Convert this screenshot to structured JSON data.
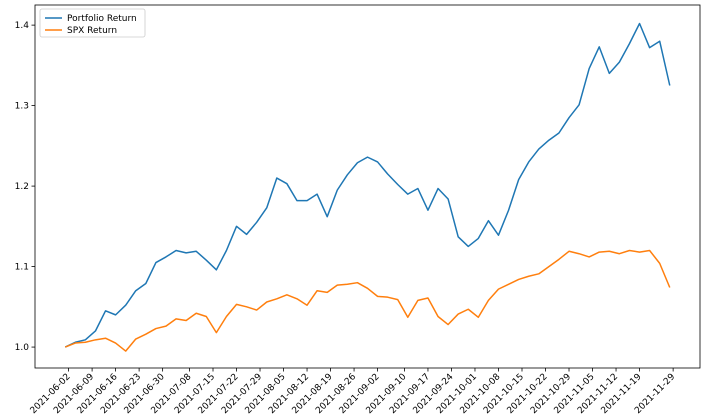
{
  "chart_data": {
    "type": "line",
    "x": [
      "2021-06-01",
      "2021-06-04",
      "2021-06-07",
      "2021-06-10",
      "2021-06-13",
      "2021-06-16",
      "2021-06-19",
      "2021-06-22",
      "2021-06-25",
      "2021-06-28",
      "2021-07-01",
      "2021-07-04",
      "2021-07-07",
      "2021-07-10",
      "2021-07-13",
      "2021-07-16",
      "2021-07-19",
      "2021-07-22",
      "2021-07-25",
      "2021-07-28",
      "2021-07-31",
      "2021-08-03",
      "2021-08-06",
      "2021-08-09",
      "2021-08-12",
      "2021-08-15",
      "2021-08-18",
      "2021-08-21",
      "2021-08-24",
      "2021-08-27",
      "2021-08-30",
      "2021-09-02",
      "2021-09-05",
      "2021-09-08",
      "2021-09-11",
      "2021-09-14",
      "2021-09-17",
      "2021-09-20",
      "2021-09-23",
      "2021-09-26",
      "2021-09-29",
      "2021-10-02",
      "2021-10-05",
      "2021-10-08",
      "2021-10-11",
      "2021-10-14",
      "2021-10-17",
      "2021-10-20",
      "2021-10-23",
      "2021-10-26",
      "2021-10-29",
      "2021-11-01",
      "2021-11-04",
      "2021-11-07",
      "2021-11-10",
      "2021-11-13",
      "2021-11-16",
      "2021-11-19",
      "2021-11-22",
      "2021-11-25",
      "2021-11-28"
    ],
    "series": [
      {
        "name": "Portfolio Return",
        "color": "#1f77b4",
        "values": [
          1.0,
          1.006,
          1.009,
          1.02,
          1.045,
          1.04,
          1.052,
          1.07,
          1.079,
          1.105,
          1.112,
          1.12,
          1.117,
          1.119,
          1.108,
          1.096,
          1.12,
          1.15,
          1.14,
          1.155,
          1.173,
          1.21,
          1.203,
          1.182,
          1.182,
          1.19,
          1.162,
          1.195,
          1.214,
          1.229,
          1.236,
          1.23,
          1.215,
          1.202,
          1.19,
          1.197,
          1.17,
          1.197,
          1.184,
          1.137,
          1.125,
          1.135,
          1.157,
          1.139,
          1.17,
          1.208,
          1.23,
          1.246,
          1.257,
          1.266,
          1.285,
          1.301,
          1.346,
          1.373,
          1.34,
          1.354,
          1.377,
          1.402,
          1.372,
          1.38,
          1.325
        ]
      },
      {
        "name": "SPX Return",
        "color": "#ff7f0e",
        "values": [
          1.0,
          1.005,
          1.006,
          1.009,
          1.011,
          1.005,
          0.995,
          1.01,
          1.016,
          1.023,
          1.026,
          1.035,
          1.033,
          1.042,
          1.038,
          1.018,
          1.038,
          1.053,
          1.05,
          1.046,
          1.056,
          1.06,
          1.065,
          1.06,
          1.052,
          1.07,
          1.068,
          1.077,
          1.078,
          1.08,
          1.073,
          1.063,
          1.062,
          1.059,
          1.037,
          1.058,
          1.061,
          1.038,
          1.028,
          1.041,
          1.047,
          1.037,
          1.058,
          1.072,
          1.078,
          1.084,
          1.088,
          1.091,
          1.1,
          1.109,
          1.119,
          1.116,
          1.112,
          1.118,
          1.119,
          1.116,
          1.12,
          1.118,
          1.12,
          1.104,
          1.074
        ]
      }
    ],
    "xlim": [
      "2021-05-23",
      "2021-12-07"
    ],
    "xticks": [
      "2021-06-02",
      "2021-06-09",
      "2021-06-16",
      "2021-06-23",
      "2021-06-30",
      "2021-07-08",
      "2021-07-15",
      "2021-07-22",
      "2021-07-29",
      "2021-08-05",
      "2021-08-12",
      "2021-08-19",
      "2021-08-26",
      "2021-09-02",
      "2021-09-10",
      "2021-09-17",
      "2021-09-24",
      "2021-10-01",
      "2021-10-08",
      "2021-10-15",
      "2021-10-22",
      "2021-10-29",
      "2021-11-05",
      "2021-11-12",
      "2021-11-19",
      "2021-11-29"
    ],
    "ylim": [
      0.974,
      1.425
    ],
    "yticks": [
      {
        "value": 1,
        "label": "1.0"
      },
      1.1,
      1.2,
      1.3,
      1.4
    ],
    "legend": "upper left"
  }
}
